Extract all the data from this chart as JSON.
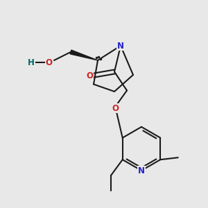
{
  "bg_color": "#e8e8e8",
  "bond_color": "#1a1a1a",
  "N_color": "#2222cc",
  "O_color": "#cc2222",
  "HO_color": "#006666",
  "fs": 8.5,
  "lw": 1.5,
  "xlim": [
    0,
    10
  ],
  "ylim": [
    0,
    10
  ]
}
